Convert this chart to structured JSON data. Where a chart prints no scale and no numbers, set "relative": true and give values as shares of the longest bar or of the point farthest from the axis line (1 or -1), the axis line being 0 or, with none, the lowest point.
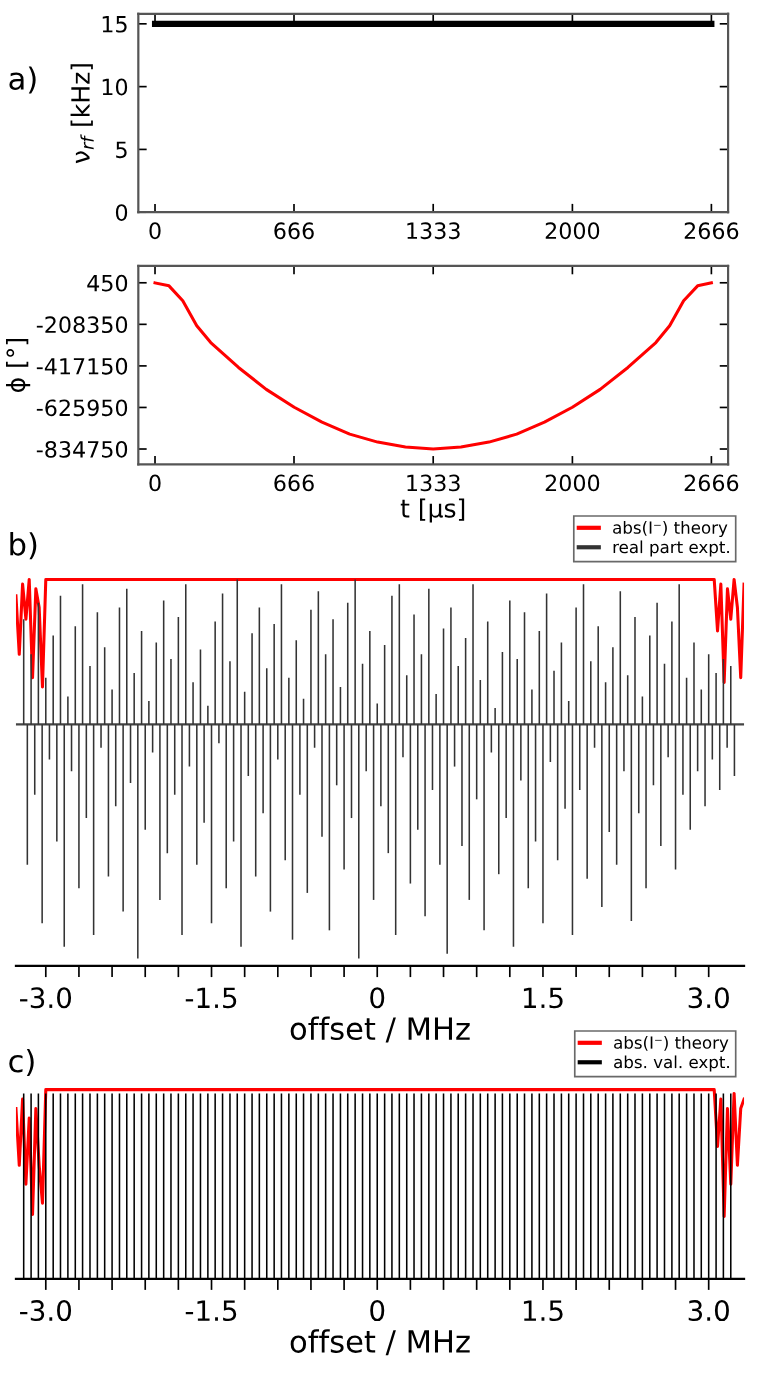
{
  "chart_data": [
    {
      "type": "line",
      "title": "a)",
      "ylabel": "ν$_{rf}$ [kHz]",
      "xlim": [
        -80,
        2746
      ],
      "ylim": [
        0,
        15.8
      ],
      "xticks": [
        0,
        666,
        1333,
        2000,
        2666
      ],
      "yticks": [
        0,
        5,
        10,
        15
      ],
      "series": [
        {
          "color": "#000000",
          "x": [
            0,
            2666
          ],
          "values": [
            15,
            15
          ]
        }
      ]
    },
    {
      "type": "line",
      "xlabel": "t [µs]",
      "ylabel": "ϕ [°]",
      "xlim": [
        -80,
        2746
      ],
      "ylim": [
        -912000,
        85000
      ],
      "xticks": [
        0,
        666,
        1333,
        2000,
        2666
      ],
      "yticks": [
        450,
        -208350,
        -417150,
        -625950,
        -834750
      ],
      "series": [
        {
          "color": "#ff0000",
          "x": [
            0,
            67,
            133,
            200,
            267,
            400,
            533,
            667,
            800,
            933,
            1067,
            1200,
            1333,
            1466,
            1600,
            1733,
            1866,
            2000,
            2133,
            2266,
            2400,
            2466,
            2533,
            2600,
            2666
          ],
          "values": [
            0,
            -15000,
            -90000,
            -215000,
            -300000,
            -425000,
            -535000,
            -625000,
            -700000,
            -760000,
            -800000,
            -825000,
            -835000,
            -825000,
            -800000,
            -760000,
            -700000,
            -625000,
            -535000,
            -425000,
            -300000,
            -215000,
            -90000,
            -15000,
            0
          ]
        }
      ]
    },
    {
      "type": "bar",
      "title": "b)",
      "xlabel": "offset / MHz",
      "relative": true,
      "tick_labels": "x",
      "legend": "top right",
      "xlim": [
        -3.27,
        3.32
      ],
      "xticks": [
        {
          "value": -3.0,
          "label": "-3.0"
        },
        {
          "value": -2.7,
          "label": null
        },
        {
          "value": -2.4,
          "label": null
        },
        {
          "value": -2.1,
          "label": null
        },
        {
          "value": -1.8,
          "label": null
        },
        {
          "value": -1.5,
          "label": "-1.5"
        },
        {
          "value": -1.2,
          "label": null
        },
        {
          "value": -0.9,
          "label": null
        },
        {
          "value": -0.6,
          "label": null
        },
        {
          "value": -0.3,
          "label": null
        },
        0,
        {
          "value": 0.3,
          "label": null
        },
        {
          "value": 0.6,
          "label": null
        },
        {
          "value": 0.9,
          "label": null
        },
        {
          "value": 1.2,
          "label": null
        },
        1.5,
        {
          "value": 1.8,
          "label": null
        },
        {
          "value": 2.1,
          "label": null
        },
        {
          "value": 2.4,
          "label": null
        },
        {
          "value": 2.7,
          "label": null
        },
        {
          "value": 3.0,
          "label": "3.0"
        }
      ],
      "series": [
        {
          "name": "abs(I⁻) theory",
          "type": "line",
          "color": "#ff0000",
          "x": [
            -3.27,
            -3.24,
            -3.21,
            -3.18,
            -3.15,
            -3.12,
            -3.09,
            -3.06,
            -3.03,
            -3.0,
            3.05,
            3.08,
            3.11,
            3.14,
            3.17,
            3.2,
            3.23,
            3.26,
            3.29,
            3.32
          ],
          "values": [
            0.55,
            0.3,
            0.6,
            0.45,
            0.62,
            0.2,
            0.58,
            0.5,
            0.16,
            0.62,
            0.62,
            0.4,
            0.6,
            0.18,
            0.58,
            0.45,
            0.62,
            0.5,
            0.2,
            0.6
          ]
        },
        {
          "name": "real part expt.",
          "color": "#333333",
          "x": [
            -3.2,
            -3.133,
            -3.067,
            -3.0,
            -2.933,
            -2.867,
            -2.8,
            -2.733,
            -2.667,
            -2.6,
            -2.533,
            -2.467,
            -2.4,
            -2.333,
            -2.267,
            -2.2,
            -2.133,
            -2.067,
            -2.0,
            -1.933,
            -1.867,
            -1.8,
            -1.733,
            -1.667,
            -1.6,
            -1.533,
            -1.467,
            -1.4,
            -1.333,
            -1.267,
            -1.2,
            -1.133,
            -1.067,
            -1.0,
            -0.933,
            -0.867,
            -0.8,
            -0.733,
            -0.667,
            -0.6,
            -0.533,
            -0.467,
            -0.4,
            -0.333,
            -0.267,
            -0.2,
            -0.133,
            -0.067,
            0.0,
            0.067,
            0.133,
            0.2,
            0.267,
            0.333,
            0.4,
            0.467,
            0.533,
            0.6,
            0.667,
            0.733,
            0.8,
            0.867,
            0.933,
            1.0,
            1.067,
            1.133,
            1.2,
            1.267,
            1.333,
            1.4,
            1.467,
            1.533,
            1.6,
            1.667,
            1.733,
            1.8,
            1.867,
            1.933,
            2.0,
            2.067,
            2.133,
            2.2,
            2.267,
            2.333,
            2.4,
            2.467,
            2.533,
            2.6,
            2.667,
            2.733,
            2.8,
            2.867,
            2.933,
            3.0,
            3.067,
            3.133,
            3.2
          ],
          "values": [
            0.45,
            0.3,
            0.52,
            0.2,
            0.38,
            0.55,
            0.12,
            0.42,
            0.6,
            0.25,
            0.48,
            0.33,
            0.15,
            0.5,
            0.58,
            0.22,
            0.4,
            0.1,
            0.35,
            0.53,
            0.28,
            0.46,
            0.6,
            0.18,
            0.32,
            0.08,
            0.44,
            0.56,
            0.27,
            0.62,
            0.14,
            0.39,
            0.5,
            0.24,
            0.43,
            0.6,
            0.2,
            0.36,
            0.11,
            0.49,
            0.57,
            0.3,
            0.45,
            0.16,
            0.52,
            0.62,
            0.26,
            0.4,
            0.09,
            0.34,
            0.55,
            0.6,
            0.21,
            0.47,
            0.3,
            0.58,
            0.13,
            0.41,
            0.5,
            0.25,
            0.37,
            0.6,
            0.19,
            0.44,
            0.07,
            0.31,
            0.53,
            0.28,
            0.48,
            0.15,
            0.4,
            0.56,
            0.23,
            0.35,
            0.1,
            0.5,
            0.6,
            0.27,
            0.42,
            0.18,
            0.33,
            0.57,
            0.21,
            0.46,
            0.12,
            0.38,
            0.52,
            0.26,
            0.44,
            0.6,
            0.2,
            0.35,
            0.15,
            0.3,
            0.22,
            0.28,
            0.25
          ]
        },
        {
          "color": "#333333",
          "x": [
            -3.167,
            -3.1,
            -3.033,
            -2.967,
            -2.9,
            -2.833,
            -2.767,
            -2.7,
            -2.633,
            -2.567,
            -2.5,
            -2.433,
            -2.367,
            -2.3,
            -2.233,
            -2.167,
            -2.1,
            -2.033,
            -1.967,
            -1.9,
            -1.833,
            -1.767,
            -1.7,
            -1.633,
            -1.567,
            -1.5,
            -1.433,
            -1.367,
            -1.3,
            -1.233,
            -1.167,
            -1.1,
            -1.033,
            -0.967,
            -0.9,
            -0.833,
            -0.767,
            -0.7,
            -0.633,
            -0.567,
            -0.5,
            -0.433,
            -0.367,
            -0.3,
            -0.233,
            -0.167,
            -0.1,
            -0.033,
            0.033,
            0.1,
            0.167,
            0.233,
            0.3,
            0.367,
            0.433,
            0.5,
            0.567,
            0.633,
            0.7,
            0.767,
            0.833,
            0.9,
            0.967,
            1.033,
            1.1,
            1.167,
            1.233,
            1.3,
            1.367,
            1.433,
            1.5,
            1.567,
            1.633,
            1.7,
            1.767,
            1.833,
            1.9,
            1.967,
            2.033,
            2.1,
            2.167,
            2.233,
            2.3,
            2.367,
            2.433,
            2.5,
            2.567,
            2.633,
            2.7,
            2.767,
            2.833,
            2.9,
            2.967,
            3.033,
            3.1,
            3.167,
            3.233
          ],
          "values": [
            -0.6,
            -0.3,
            -0.85,
            -0.15,
            -0.5,
            -0.95,
            -0.2,
            -0.7,
            -0.4,
            -0.9,
            -0.1,
            -0.65,
            -0.35,
            -0.8,
            -0.25,
            -1.0,
            -0.45,
            -0.12,
            -0.75,
            -0.55,
            -0.3,
            -0.9,
            -0.18,
            -0.6,
            -0.42,
            -0.85,
            -0.08,
            -0.7,
            -0.5,
            -0.95,
            -0.22,
            -0.65,
            -0.38,
            -0.8,
            -0.15,
            -0.58,
            -0.92,
            -0.3,
            -0.72,
            -0.1,
            -0.48,
            -0.88,
            -0.26,
            -0.62,
            -0.4,
            -1.0,
            -0.2,
            -0.75,
            -0.35,
            -0.55,
            -0.9,
            -0.14,
            -0.68,
            -0.45,
            -0.82,
            -0.28,
            -0.6,
            -0.98,
            -0.18,
            -0.52,
            -0.75,
            -0.32,
            -0.88,
            -0.12,
            -0.64,
            -0.4,
            -0.95,
            -0.24,
            -0.7,
            -0.5,
            -0.85,
            -0.16,
            -0.58,
            -0.36,
            -0.9,
            -0.28,
            -0.66,
            -0.1,
            -0.78,
            -0.46,
            -0.6,
            -0.2,
            -0.84,
            -0.38,
            -0.7,
            -0.26,
            -0.52,
            -0.14,
            -0.62,
            -0.3,
            -0.45,
            -0.2,
            -0.35,
            -0.15,
            -0.28,
            -0.1,
            -0.22
          ]
        }
      ]
    },
    {
      "type": "bar",
      "title": "c)",
      "xlabel": "offset / MHz",
      "relative": true,
      "tick_labels": "x",
      "legend": "top right",
      "xlim": [
        -3.27,
        3.32
      ],
      "xticks": [
        {
          "value": -3.0,
          "label": "-3.0"
        },
        {
          "value": -2.7,
          "label": null
        },
        {
          "value": -2.4,
          "label": null
        },
        {
          "value": -2.1,
          "label": null
        },
        {
          "value": -1.8,
          "label": null
        },
        {
          "value": -1.5,
          "label": "-1.5"
        },
        {
          "value": -1.2,
          "label": null
        },
        {
          "value": -0.9,
          "label": null
        },
        {
          "value": -0.6,
          "label": null
        },
        {
          "value": -0.3,
          "label": null
        },
        0,
        {
          "value": 0.3,
          "label": null
        },
        {
          "value": 0.6,
          "label": null
        },
        {
          "value": 0.9,
          "label": null
        },
        {
          "value": 1.2,
          "label": null
        },
        1.5,
        {
          "value": 1.8,
          "label": null
        },
        {
          "value": 2.1,
          "label": null
        },
        {
          "value": 2.4,
          "label": null
        },
        {
          "value": 2.7,
          "label": null
        },
        {
          "value": 3.0,
          "label": "3.0"
        }
      ],
      "series": [
        {
          "name": "abs(I⁻) theory",
          "type": "line",
          "color": "#ff0000",
          "x": [
            -3.27,
            -3.24,
            -3.21,
            -3.18,
            -3.15,
            -3.12,
            -3.09,
            -3.06,
            -3.03,
            -3.0,
            3.05,
            3.08,
            3.11,
            3.14,
            3.17,
            3.2,
            3.23,
            3.26,
            3.29,
            3.32
          ],
          "values": [
            0.9,
            0.6,
            0.95,
            0.5,
            0.85,
            0.34,
            0.9,
            0.6,
            0.4,
            1,
            1,
            0.7,
            0.95,
            0.33,
            0.9,
            0.5,
            0.98,
            0.6,
            0.9,
            0.95
          ]
        },
        {
          "name": "abs. val. expt.",
          "color": "#000000",
          "x": [
            -3.2,
            -3.133,
            -3.067,
            -3.0,
            -2.933,
            -2.867,
            -2.8,
            -2.733,
            -2.667,
            -2.6,
            -2.533,
            -2.467,
            -2.4,
            -2.333,
            -2.267,
            -2.2,
            -2.133,
            -2.067,
            -2.0,
            -1.933,
            -1.867,
            -1.8,
            -1.733,
            -1.667,
            -1.6,
            -1.533,
            -1.467,
            -1.4,
            -1.333,
            -1.267,
            -1.2,
            -1.133,
            -1.067,
            -1.0,
            -0.933,
            -0.867,
            -0.8,
            -0.733,
            -0.667,
            -0.6,
            -0.533,
            -0.467,
            -0.4,
            -0.333,
            -0.267,
            -0.2,
            -0.133,
            -0.067,
            0.0,
            0.067,
            0.133,
            0.2,
            0.267,
            0.333,
            0.4,
            0.467,
            0.533,
            0.6,
            0.667,
            0.733,
            0.8,
            0.867,
            0.933,
            1.0,
            1.067,
            1.133,
            1.2,
            1.267,
            1.333,
            1.4,
            1.467,
            1.533,
            1.6,
            1.667,
            1.733,
            1.8,
            1.867,
            1.933,
            2.0,
            2.067,
            2.133,
            2.2,
            2.267,
            2.333,
            2.4,
            2.467,
            2.533,
            2.6,
            2.667,
            2.733,
            2.8,
            2.867,
            2.933,
            3.0,
            3.067,
            3.133,
            3.2
          ],
          "values": [
            0.98,
            0.98,
            0.98,
            0.98,
            0.98,
            0.98,
            0.98,
            0.98,
            0.98,
            0.98,
            0.98,
            0.98,
            0.98,
            0.98,
            0.98,
            0.98,
            0.98,
            0.98,
            0.98,
            0.98,
            0.98,
            0.98,
            0.98,
            0.98,
            0.98,
            0.98,
            0.98,
            0.98,
            0.98,
            0.98,
            0.98,
            0.98,
            0.98,
            0.98,
            0.98,
            0.98,
            0.98,
            0.98,
            0.98,
            0.98,
            0.98,
            0.98,
            0.98,
            0.98,
            0.98,
            0.98,
            0.98,
            0.98,
            0.98,
            0.98,
            0.98,
            0.98,
            0.98,
            0.98,
            0.98,
            0.98,
            0.98,
            0.98,
            0.98,
            0.98,
            0.98,
            0.98,
            0.98,
            0.98,
            0.98,
            0.98,
            0.98,
            0.98,
            0.98,
            0.98,
            0.98,
            0.98,
            0.98,
            0.98,
            0.98,
            0.98,
            0.98,
            0.98,
            0.98,
            0.98,
            0.98,
            0.98,
            0.98,
            0.98,
            0.98,
            0.98,
            0.98,
            0.98,
            0.98,
            0.98,
            0.98,
            0.98,
            0.98,
            0.98,
            0.98,
            0.98,
            0.98
          ]
        }
      ]
    }
  ]
}
